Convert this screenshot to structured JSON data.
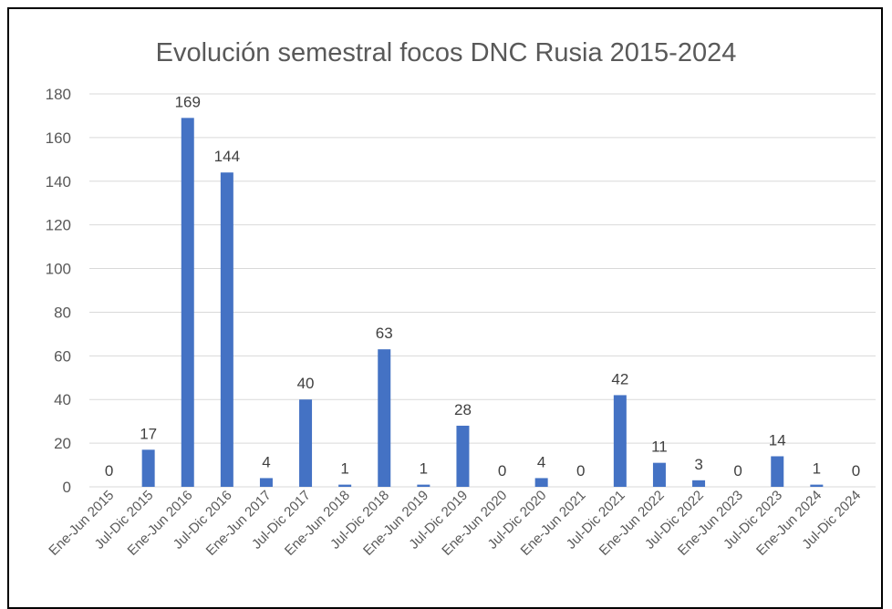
{
  "chart_data": {
    "type": "bar",
    "title": "Evolución semestral focos DNC Rusia 2015-2024",
    "xlabel": "",
    "ylabel": "",
    "ylim": [
      0,
      180
    ],
    "yticks": [
      0,
      20,
      40,
      60,
      80,
      100,
      120,
      140,
      160,
      180
    ],
    "grid": true,
    "legend": "none",
    "color": "#4472C4",
    "categories": [
      "Ene-Jun 2015",
      "Jul-Dic 2015",
      "Ene-Jun 2016",
      "Jul-Dic 2016",
      "Ene-Jun 2017",
      "Jul-Dic 2017",
      "Ene-Jun 2018",
      "Jul-Dic 2018",
      "Ene-Jun 2019",
      "Jul-Dic 2019",
      "Ene-Jun 2020",
      "Jul-Dic 2020",
      "Ene-Jun 2021",
      "Jul-Dic 2021",
      "Ene-Jun 2022",
      "Jul-Dic 2022",
      "Ene-Jun 2023",
      "Jul-Dic 2023",
      "Ene-Jun 2024",
      "Jul-Dic 2024"
    ],
    "values": [
      0,
      17,
      169,
      144,
      4,
      40,
      1,
      63,
      1,
      28,
      0,
      4,
      0,
      42,
      11,
      3,
      0,
      14,
      1,
      0
    ]
  }
}
